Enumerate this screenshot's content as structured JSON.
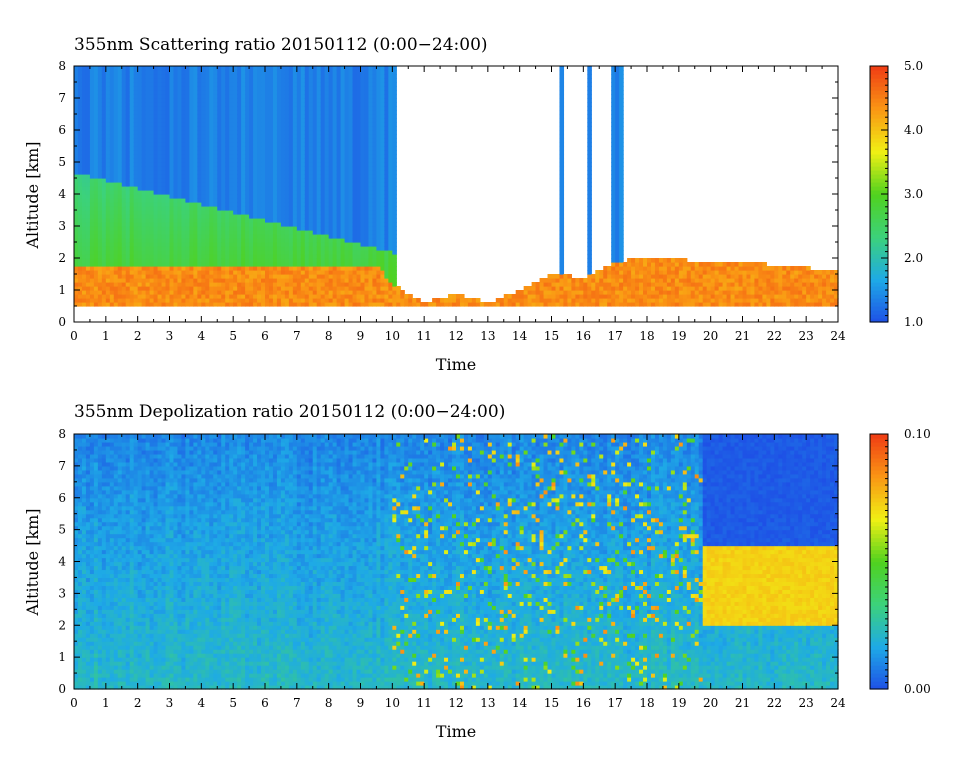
{
  "chart_data": [
    {
      "type": "heatmap",
      "title": "355nm Scattering ratio  20150112 (0:00−24:00)",
      "xlabel": "Time",
      "ylabel": "Altitude [km]",
      "xlim": [
        0,
        24
      ],
      "ylim": [
        0,
        8
      ],
      "x_ticks": [
        "0",
        "1",
        "2",
        "3",
        "4",
        "5",
        "6",
        "7",
        "8",
        "9",
        "10",
        "11",
        "12",
        "13",
        "14",
        "15",
        "16",
        "17",
        "18",
        "19",
        "20",
        "21",
        "22",
        "23",
        "24"
      ],
      "y_ticks": [
        "0",
        "1",
        "2",
        "3",
        "4",
        "5",
        "6",
        "7",
        "8"
      ],
      "colorbar": {
        "min": 1.0,
        "max": 5.0,
        "tick_labels": [
          "5.0",
          "4.0",
          "3.0",
          "2.0",
          "1.0"
        ],
        "tick_values": [
          5.0,
          4.0,
          3.0,
          2.0,
          1.0
        ]
      },
      "colormap": [
        "#1e50e6",
        "#1eaae6",
        "#3cd27a",
        "#50d21e",
        "#f0f014",
        "#fa9614",
        "#f03c14"
      ],
      "features": {
        "boundary_layer_top_km": [
          [
            0,
            1.8
          ],
          [
            3,
            1.7
          ],
          [
            5,
            1.7
          ],
          [
            8,
            1.7
          ],
          [
            9.5,
            1.8
          ],
          [
            10,
            1.2
          ],
          [
            11,
            0.6
          ],
          [
            12,
            0.9
          ],
          [
            13,
            0.6
          ],
          [
            14,
            1.0
          ],
          [
            15,
            1.5
          ],
          [
            16,
            1.4
          ],
          [
            17,
            1.9
          ],
          [
            18,
            2.0
          ],
          [
            20,
            1.9
          ],
          [
            22,
            1.8
          ],
          [
            24,
            1.6
          ]
        ],
        "boundary_layer_ratio": 4.6,
        "aerosol_layer_top_km": 2.2,
        "aerosol_ratio": 3.2,
        "column_ratio_upper": 1.5,
        "high_cloud_gap_intervals": [
          [
            10.1,
            15.2
          ],
          [
            15.4,
            16.1
          ],
          [
            16.3,
            16.9
          ],
          [
            17.3,
            24
          ]
        ]
      }
    },
    {
      "type": "heatmap",
      "title": "355nm Depolization ratio  20150112 (0:00−24:00)",
      "xlabel": "Time",
      "ylabel": "Altitude [km]",
      "xlim": [
        0,
        24
      ],
      "ylim": [
        0,
        8
      ],
      "x_ticks": [
        "0",
        "1",
        "2",
        "3",
        "4",
        "5",
        "6",
        "7",
        "8",
        "9",
        "10",
        "11",
        "12",
        "13",
        "14",
        "15",
        "16",
        "17",
        "18",
        "19",
        "20",
        "21",
        "22",
        "23",
        "24"
      ],
      "y_ticks": [
        "0",
        "1",
        "2",
        "3",
        "4",
        "5",
        "6",
        "7",
        "8"
      ],
      "colorbar": {
        "min": 0.0,
        "max": 0.1,
        "tick_labels": [
          "0.10",
          "0.00"
        ],
        "tick_values": [
          0.1,
          0.0
        ]
      },
      "colormap": [
        "#1e50e6",
        "#1eaae6",
        "#3cd27a",
        "#50d21e",
        "#f0f014",
        "#fa9614",
        "#f03c14"
      ],
      "features": {
        "background_ratio": 0.02,
        "noisy_interval": [
          10,
          19.8
        ],
        "dust_layer": {
          "x": [
            19.8,
            24
          ],
          "y_km": [
            2.0,
            4.5
          ],
          "ratio": 0.07
        },
        "upper_clear_interval_ratio": 0.0
      }
    }
  ]
}
